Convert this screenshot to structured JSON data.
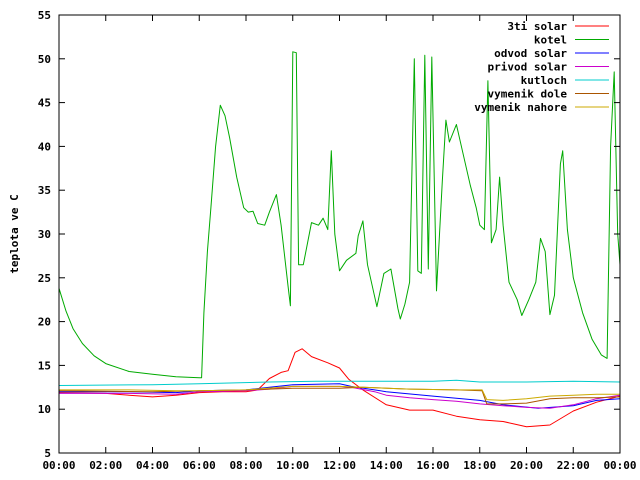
{
  "chart_data": {
    "type": "line",
    "title": "",
    "xlabel": "",
    "ylabel": "teplota ve C",
    "xlim": [
      0,
      24
    ],
    "ylim": [
      5,
      55
    ],
    "x_tick_values": [
      0,
      2,
      4,
      6,
      8,
      10,
      12,
      14,
      16,
      18,
      20,
      22,
      24
    ],
    "x_tick_labels": [
      "00:00",
      "02:00",
      "04:00",
      "06:00",
      "08:00",
      "10:00",
      "12:00",
      "14:00",
      "16:00",
      "18:00",
      "20:00",
      "22:00",
      "00:00"
    ],
    "y_tick_values": [
      5,
      10,
      15,
      20,
      25,
      30,
      35,
      40,
      45,
      50,
      55
    ],
    "y_tick_labels": [
      "5",
      "10",
      "15",
      "20",
      "25",
      "30",
      "35",
      "40",
      "45",
      "50",
      "55"
    ],
    "grid": false,
    "legend_position": "top-right",
    "series": [
      {
        "name": "3ti solar",
        "color": "#ff0000",
        "points": [
          [
            0,
            11.9
          ],
          [
            2,
            11.8
          ],
          [
            3,
            11.6
          ],
          [
            4,
            11.4
          ],
          [
            5,
            11.6
          ],
          [
            6,
            11.9
          ],
          [
            7,
            12.0
          ],
          [
            8,
            12.0
          ],
          [
            8.5,
            12.2
          ],
          [
            9,
            13.5
          ],
          [
            9.5,
            14.2
          ],
          [
            9.8,
            14.4
          ],
          [
            10.1,
            16.5
          ],
          [
            10.4,
            16.9
          ],
          [
            10.8,
            16.0
          ],
          [
            11.5,
            15.3
          ],
          [
            12.0,
            14.7
          ],
          [
            12.4,
            13.4
          ],
          [
            13,
            12.2
          ],
          [
            14,
            10.5
          ],
          [
            15,
            9.9
          ],
          [
            16,
            9.9
          ],
          [
            17,
            9.2
          ],
          [
            18,
            8.8
          ],
          [
            19,
            8.6
          ],
          [
            19.5,
            8.3
          ],
          [
            20,
            8.0
          ],
          [
            21,
            8.2
          ],
          [
            21.5,
            9.0
          ],
          [
            22,
            9.8
          ],
          [
            23,
            10.8
          ],
          [
            24,
            11.5
          ]
        ]
      },
      {
        "name": "kotel",
        "color": "#00aa00",
        "points": [
          [
            0,
            23.8
          ],
          [
            0.3,
            21.2
          ],
          [
            0.6,
            19.2
          ],
          [
            1,
            17.5
          ],
          [
            1.5,
            16.1
          ],
          [
            2,
            15.2
          ],
          [
            3,
            14.3
          ],
          [
            4,
            14.0
          ],
          [
            5,
            13.7
          ],
          [
            6,
            13.6
          ],
          [
            6.1,
            13.6
          ],
          [
            6.2,
            21.0
          ],
          [
            6.35,
            28.0
          ],
          [
            6.5,
            33.0
          ],
          [
            6.7,
            40.0
          ],
          [
            6.9,
            44.7
          ],
          [
            7.1,
            43.5
          ],
          [
            7.3,
            41.0
          ],
          [
            7.6,
            36.5
          ],
          [
            7.9,
            33.0
          ],
          [
            8.1,
            32.5
          ],
          [
            8.3,
            32.6
          ],
          [
            8.5,
            31.2
          ],
          [
            8.8,
            31.0
          ],
          [
            9.0,
            32.5
          ],
          [
            9.3,
            34.5
          ],
          [
            9.5,
            31.0
          ],
          [
            9.8,
            24.0
          ],
          [
            9.9,
            21.8
          ],
          [
            10.0,
            50.8
          ],
          [
            10.15,
            50.7
          ],
          [
            10.25,
            26.5
          ],
          [
            10.45,
            26.5
          ],
          [
            10.8,
            31.3
          ],
          [
            11.1,
            31.0
          ],
          [
            11.3,
            31.8
          ],
          [
            11.5,
            30.5
          ],
          [
            11.65,
            39.5
          ],
          [
            11.8,
            30.0
          ],
          [
            12.0,
            25.8
          ],
          [
            12.3,
            27.0
          ],
          [
            12.7,
            27.8
          ],
          [
            12.8,
            29.8
          ],
          [
            13.0,
            31.5
          ],
          [
            13.2,
            26.5
          ],
          [
            13.6,
            21.7
          ],
          [
            13.9,
            25.5
          ],
          [
            14.2,
            26.0
          ],
          [
            14.5,
            21.5
          ],
          [
            14.6,
            20.3
          ],
          [
            14.8,
            22.0
          ],
          [
            15.0,
            24.5
          ],
          [
            15.2,
            50.0
          ],
          [
            15.35,
            25.8
          ],
          [
            15.5,
            25.5
          ],
          [
            15.65,
            50.4
          ],
          [
            15.8,
            26.0
          ],
          [
            15.95,
            50.2
          ],
          [
            16.15,
            23.5
          ],
          [
            16.4,
            36.0
          ],
          [
            16.55,
            43.0
          ],
          [
            16.7,
            40.5
          ],
          [
            17.0,
            42.5
          ],
          [
            17.3,
            39.0
          ],
          [
            17.6,
            35.5
          ],
          [
            17.85,
            33.0
          ],
          [
            18.0,
            31.0
          ],
          [
            18.2,
            30.5
          ],
          [
            18.35,
            47.5
          ],
          [
            18.5,
            29.0
          ],
          [
            18.7,
            30.5
          ],
          [
            18.85,
            36.5
          ],
          [
            19.0,
            31.0
          ],
          [
            19.25,
            24.5
          ],
          [
            19.6,
            22.5
          ],
          [
            19.8,
            20.7
          ],
          [
            20.1,
            22.5
          ],
          [
            20.4,
            24.5
          ],
          [
            20.6,
            29.5
          ],
          [
            20.8,
            28.0
          ],
          [
            21.0,
            20.8
          ],
          [
            21.2,
            23.0
          ],
          [
            21.45,
            38.0
          ],
          [
            21.55,
            39.5
          ],
          [
            21.75,
            30.5
          ],
          [
            22.0,
            25.0
          ],
          [
            22.4,
            21.0
          ],
          [
            22.8,
            18.0
          ],
          [
            23.2,
            16.2
          ],
          [
            23.45,
            15.8
          ],
          [
            23.6,
            40.0
          ],
          [
            23.75,
            48.5
          ],
          [
            23.9,
            30.0
          ],
          [
            24.0,
            26.5
          ]
        ]
      },
      {
        "name": "odvod solar",
        "color": "#0000ff",
        "points": [
          [
            0,
            12.0
          ],
          [
            3,
            12.0
          ],
          [
            5,
            11.9
          ],
          [
            6,
            12.1
          ],
          [
            8,
            12.2
          ],
          [
            9,
            12.5
          ],
          [
            10,
            12.8
          ],
          [
            12,
            12.9
          ],
          [
            12.5,
            12.6
          ],
          [
            14,
            12.0
          ],
          [
            16,
            11.5
          ],
          [
            18,
            11.0
          ],
          [
            19,
            10.5
          ],
          [
            20.5,
            10.1
          ],
          [
            22,
            10.4
          ],
          [
            23,
            11.0
          ],
          [
            24,
            11.2
          ]
        ]
      },
      {
        "name": "privod solar",
        "color": "#cc00cc",
        "points": [
          [
            0,
            11.8
          ],
          [
            3,
            11.8
          ],
          [
            5,
            11.7
          ],
          [
            6,
            12.0
          ],
          [
            8,
            12.1
          ],
          [
            9,
            12.3
          ],
          [
            10,
            12.6
          ],
          [
            12,
            12.6
          ],
          [
            12.5,
            12.5
          ],
          [
            13.5,
            12.0
          ],
          [
            14,
            11.6
          ],
          [
            15,
            11.3
          ],
          [
            16,
            11.1
          ],
          [
            17,
            10.9
          ],
          [
            18,
            10.6
          ],
          [
            19,
            10.4
          ],
          [
            20,
            10.2
          ],
          [
            21,
            10.1
          ],
          [
            22,
            10.5
          ],
          [
            23,
            11.2
          ],
          [
            24,
            11.6
          ]
        ]
      },
      {
        "name": "kutloch",
        "color": "#00cccc",
        "points": [
          [
            0,
            12.7
          ],
          [
            4,
            12.8
          ],
          [
            6,
            12.9
          ],
          [
            9,
            13.1
          ],
          [
            11,
            13.2
          ],
          [
            12,
            13.2
          ],
          [
            14,
            13.2
          ],
          [
            16,
            13.2
          ],
          [
            17,
            13.3
          ],
          [
            18,
            13.1
          ],
          [
            20,
            13.1
          ],
          [
            22,
            13.2
          ],
          [
            24,
            13.1
          ]
        ]
      },
      {
        "name": "vymenik dole",
        "color": "#aa5500",
        "points": [
          [
            0,
            12.1
          ],
          [
            4,
            12.0
          ],
          [
            6,
            12.1
          ],
          [
            8,
            12.2
          ],
          [
            9,
            12.3
          ],
          [
            10,
            12.4
          ],
          [
            12,
            12.4
          ],
          [
            13,
            12.5
          ],
          [
            15,
            12.3
          ],
          [
            17,
            12.2
          ],
          [
            18.1,
            12.1
          ],
          [
            18.3,
            10.6
          ],
          [
            19,
            10.6
          ],
          [
            20,
            10.7
          ],
          [
            21,
            11.2
          ],
          [
            22,
            11.3
          ],
          [
            23,
            11.3
          ],
          [
            24,
            11.4
          ]
        ]
      },
      {
        "name": "vymenik nahore",
        "color": "#ccaa00",
        "points": [
          [
            0,
            12.2
          ],
          [
            3,
            12.2
          ],
          [
            5,
            12.1
          ],
          [
            6,
            12.1
          ],
          [
            8,
            12.2
          ],
          [
            10,
            12.6
          ],
          [
            12,
            12.6
          ],
          [
            13,
            12.5
          ],
          [
            15,
            12.3
          ],
          [
            17,
            12.2
          ],
          [
            18.1,
            12.2
          ],
          [
            18.3,
            11.1
          ],
          [
            19,
            11.0
          ],
          [
            20,
            11.2
          ],
          [
            21,
            11.5
          ],
          [
            22,
            11.6
          ],
          [
            23,
            11.7
          ],
          [
            24,
            11.7
          ]
        ]
      }
    ]
  }
}
